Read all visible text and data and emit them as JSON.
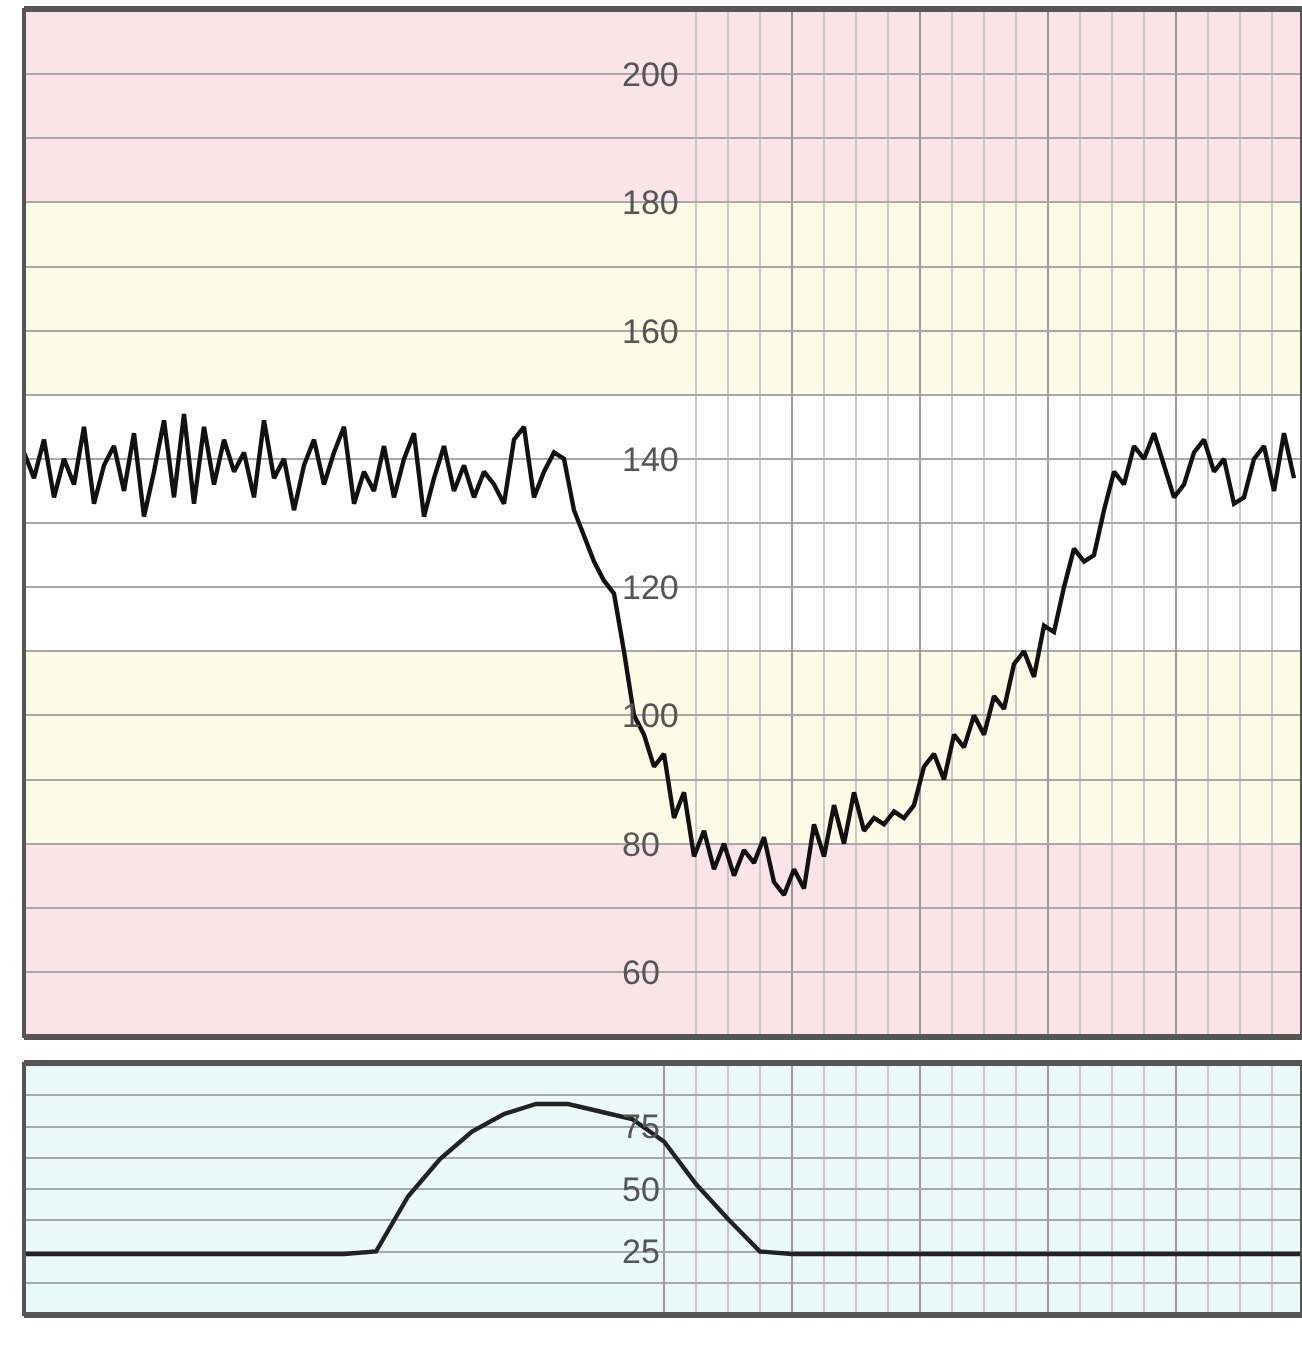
{
  "chart_data": [
    {
      "type": "line",
      "categories": [
        null,
        null,
        null,
        null,
        null,
        null,
        null,
        null,
        null,
        null,
        null,
        null,
        null,
        null,
        null,
        null,
        null,
        null,
        null,
        null,
        null,
        null,
        null,
        null,
        null,
        null,
        null,
        null,
        null,
        null,
        null,
        null,
        null,
        null,
        null,
        null,
        null,
        null,
        null,
        null,
        null,
        null,
        null,
        null,
        null,
        null,
        null,
        null,
        null,
        null,
        null,
        null,
        null,
        null,
        null,
        null,
        null,
        null,
        null,
        null,
        null,
        null,
        null,
        null,
        null,
        null,
        null,
        null,
        null,
        null,
        null,
        null,
        null,
        null,
        null,
        null,
        null,
        null,
        null,
        null,
        null,
        null,
        null,
        null,
        null,
        null,
        null,
        null,
        null,
        null,
        null,
        null,
        null,
        null,
        null,
        null,
        null,
        null,
        null,
        null,
        null,
        null,
        null,
        null,
        null,
        null,
        null,
        null,
        null,
        null,
        null,
        null,
        null,
        null,
        null,
        null,
        null,
        null,
        null,
        null,
        null,
        null,
        null,
        null,
        null,
        null,
        null,
        null
      ],
      "series": [
        {
          "color": "#111111",
          "values": [
            141,
            137,
            143,
            134,
            140,
            136,
            145,
            133,
            139,
            142,
            135,
            144,
            131,
            138,
            146,
            134,
            147,
            133,
            145,
            136,
            143,
            138,
            141,
            134,
            146,
            137,
            140,
            132,
            139,
            143,
            136,
            141,
            145,
            133,
            138,
            135,
            142,
            134,
            140,
            144,
            131,
            137,
            142,
            135,
            139,
            134,
            138,
            136,
            133,
            143,
            145,
            134,
            138,
            141,
            140,
            132,
            128,
            124,
            121,
            119,
            110,
            100,
            97,
            92,
            94,
            84,
            88,
            78,
            82,
            76,
            80,
            75,
            79,
            77,
            81,
            74,
            72,
            76,
            73,
            83,
            78,
            86,
            80,
            88,
            82,
            84,
            83,
            85,
            84,
            86,
            92,
            94,
            90,
            97,
            95,
            100,
            97,
            103,
            101,
            108,
            110,
            106,
            114,
            113,
            120,
            126,
            124,
            125,
            132,
            138,
            136,
            142,
            140,
            144,
            139,
            134,
            136,
            141,
            143,
            138,
            140,
            133,
            134,
            140,
            142,
            135,
            144,
            137
          ]
        }
      ],
      "ylim": [
        50,
        210
      ],
      "yticks": [
        60,
        80,
        100,
        120,
        140,
        160,
        180,
        200
      ],
      "grid": true,
      "tick_labels": "y",
      "bands": [
        {
          "axis": "y",
          "from": 180,
          "to": 210,
          "color": "#fbe4e9"
        },
        {
          "axis": "y",
          "from": 150,
          "to": 180,
          "color": "#fbfbe6"
        },
        {
          "axis": "y",
          "from": 80,
          "to": 110,
          "color": "#fbfbe6"
        },
        {
          "axis": "y",
          "from": 50,
          "to": 80,
          "color": "#fbe4e9"
        }
      ]
    },
    {
      "type": "line",
      "categories": [
        null,
        null,
        null,
        null,
        null,
        null,
        null,
        null,
        null,
        null,
        null,
        null,
        null,
        null,
        null,
        null,
        null,
        null,
        null,
        null,
        null,
        null,
        null,
        null,
        null,
        null,
        null,
        null,
        null,
        null,
        null,
        null,
        null,
        null,
        null,
        null,
        null,
        null,
        null,
        null,
        null
      ],
      "series": [
        {
          "color": "#222222",
          "values": [
            24,
            24,
            24,
            24,
            24,
            24,
            24,
            24,
            24,
            24,
            24,
            25,
            47,
            62,
            73,
            80,
            84,
            84,
            81,
            78,
            69,
            52,
            38,
            25,
            24,
            24,
            24,
            24,
            24,
            24,
            24,
            24,
            24,
            24,
            24,
            24,
            24,
            24,
            24,
            24,
            24
          ]
        }
      ],
      "ylim": [
        0,
        100
      ],
      "yticks": [
        25,
        50,
        75
      ],
      "grid": true,
      "tick_labels": "y",
      "bands": [
        {
          "axis": "y",
          "from": 0,
          "to": 100,
          "color": "#eafafa"
        }
      ]
    }
  ]
}
